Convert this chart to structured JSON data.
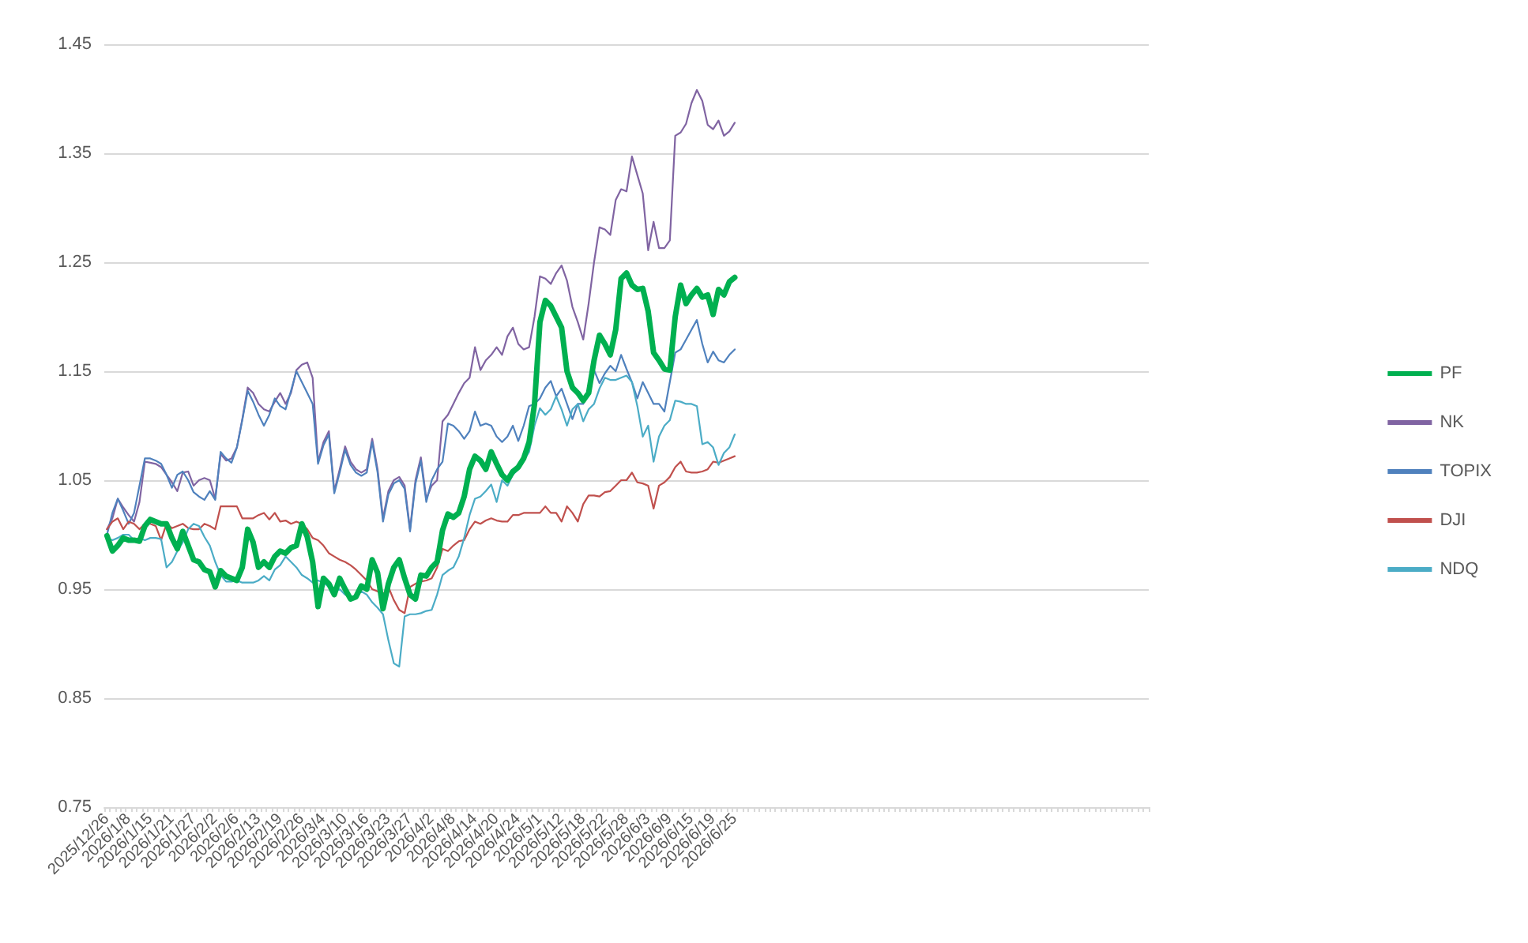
{
  "chart_data": {
    "type": "line",
    "categories": [
      "2025/12/26",
      null,
      null,
      null,
      "2026/1/8",
      null,
      null,
      null,
      "2026/1/15",
      null,
      null,
      null,
      "2026/1/21",
      null,
      null,
      null,
      "2026/1/27",
      null,
      null,
      null,
      "2026/2/2",
      null,
      null,
      null,
      "2026/2/6",
      null,
      null,
      null,
      "2026/2/13",
      null,
      null,
      null,
      "2026/2/19",
      null,
      null,
      null,
      "2026/2/26",
      null,
      null,
      null,
      "2026/3/4",
      null,
      null,
      null,
      "2026/3/10",
      null,
      null,
      null,
      "2026/3/16",
      null,
      null,
      null,
      "2026/3/23",
      null,
      null,
      null,
      "2026/3/27",
      null,
      null,
      null,
      "2026/4/2",
      null,
      null,
      null,
      "2026/4/8",
      null,
      null,
      null,
      "2026/4/14",
      null,
      null,
      null,
      "2026/4/20",
      null,
      null,
      null,
      "2026/4/24",
      null,
      null,
      null,
      "2026/5/1",
      null,
      null,
      null,
      "2026/5/12",
      null,
      null,
      null,
      "2026/5/18",
      null,
      null,
      null,
      "2026/5/22",
      null,
      null,
      null,
      "2026/5/28",
      null,
      null,
      null,
      "2026/6/3",
      null,
      null,
      null,
      "2026/6/9",
      null,
      null,
      null,
      "2026/6/15",
      null,
      null,
      null,
      "2026/6/19",
      null,
      null,
      null,
      "2026/6/25",
      null,
      null,
      null,
      null,
      null,
      null,
      null,
      null,
      null,
      null,
      null,
      null,
      null,
      null,
      null,
      null,
      null,
      null,
      null,
      null,
      null,
      null,
      null,
      null,
      null,
      null,
      null,
      null,
      null,
      null,
      null,
      null,
      null,
      null,
      null,
      null,
      null,
      null,
      null,
      null,
      null,
      null,
      null,
      null,
      null,
      null,
      null,
      null,
      null,
      null,
      null,
      null,
      null,
      null,
      null,
      null,
      null,
      null,
      null,
      null,
      null,
      null,
      null,
      null,
      null,
      null,
      null,
      null,
      null,
      null,
      null,
      null,
      null,
      null,
      null,
      null
    ],
    "series": [
      {
        "name": "PF",
        "color": "#00b050",
        "values": [
          0.999,
          0.985,
          0.99,
          0.997,
          0.995,
          0.995,
          0.994,
          1.008,
          1.014,
          1.012,
          1.01,
          1.01,
          0.997,
          0.987,
          1.003,
          0.99,
          0.977,
          0.975,
          0.968,
          0.966,
          0.952,
          0.967,
          0.962,
          0.96,
          0.958,
          0.97,
          1.005,
          0.993,
          0.97,
          0.975,
          0.97,
          0.98,
          0.985,
          0.983,
          0.988,
          0.99,
          1.01,
          0.998,
          0.975,
          0.934,
          0.96,
          0.955,
          0.945,
          0.96,
          0.95,
          0.941,
          0.943,
          0.953,
          0.95,
          0.977,
          0.965,
          0.932,
          0.955,
          0.97,
          0.977,
          0.96,
          0.945,
          0.941,
          0.963,
          0.962,
          0.97,
          0.975,
          1.004,
          1.019,
          1.016,
          1.02,
          1.035,
          1.06,
          1.072,
          1.068,
          1.06,
          1.076,
          1.065,
          1.055,
          1.05,
          1.058,
          1.062,
          1.07,
          1.085,
          1.12,
          1.195,
          1.215,
          1.21,
          1.2,
          1.19,
          1.15,
          1.135,
          1.13,
          1.123,
          1.13,
          1.16,
          1.183,
          1.175,
          1.165,
          1.188,
          1.235,
          1.24,
          1.229,
          1.225,
          1.226,
          1.205,
          1.167,
          1.16,
          1.152,
          1.151,
          1.2,
          1.229,
          1.212,
          1.22,
          1.226,
          1.218,
          1.22,
          1.202,
          1.225,
          1.22,
          1.232,
          1.236,
          null,
          null,
          null,
          null,
          null,
          null,
          null,
          null,
          null,
          null,
          null,
          null,
          null,
          null,
          null,
          null,
          null,
          null,
          null,
          null,
          null,
          null,
          null,
          null,
          null,
          null,
          null,
          null,
          null,
          null,
          null,
          null,
          null,
          null,
          null,
          null,
          null,
          null,
          null,
          null,
          null,
          null,
          null,
          null,
          null,
          null,
          null,
          null,
          null,
          null,
          null,
          null,
          null,
          null,
          null,
          null,
          null,
          null,
          null,
          null,
          null,
          null,
          null,
          null,
          null,
          null,
          null,
          null,
          null,
          null,
          null,
          null,
          null,
          null,
          null,
          null
        ]
      },
      {
        "name": "NK",
        "color": "#8064a2",
        "values": [
          1.005,
          1.015,
          1.033,
          1.025,
          1.018,
          1.012,
          1.03,
          1.067,
          1.066,
          1.065,
          1.062,
          1.055,
          1.048,
          1.04,
          1.057,
          1.058,
          1.045,
          1.05,
          1.052,
          1.05,
          1.033,
          1.074,
          1.068,
          1.07,
          1.08,
          1.106,
          1.135,
          1.13,
          1.12,
          1.115,
          1.113,
          1.122,
          1.13,
          1.12,
          1.13,
          1.151,
          1.156,
          1.158,
          1.144,
          1.067,
          1.085,
          1.095,
          1.04,
          1.06,
          1.081,
          1.067,
          1.06,
          1.057,
          1.06,
          1.088,
          1.06,
          1.015,
          1.04,
          1.05,
          1.053,
          1.045,
          1.005,
          1.05,
          1.071,
          1.033,
          1.045,
          1.05,
          1.104,
          1.11,
          1.12,
          1.13,
          1.139,
          1.144,
          1.172,
          1.151,
          1.16,
          1.165,
          1.172,
          1.165,
          1.182,
          1.19,
          1.175,
          1.17,
          1.172,
          1.2,
          1.237,
          1.235,
          1.23,
          1.24,
          1.247,
          1.233,
          1.209,
          1.195,
          1.179,
          1.212,
          1.25,
          1.282,
          1.28,
          1.275,
          1.307,
          1.317,
          1.315,
          1.347,
          1.33,
          1.313,
          1.261,
          1.287,
          1.263,
          1.263,
          1.27,
          1.366,
          1.369,
          1.377,
          1.396,
          1.408,
          1.398,
          1.376,
          1.372,
          1.38,
          1.366,
          1.37,
          1.378,
          null,
          null,
          null,
          null,
          null,
          null,
          null,
          null,
          null,
          null,
          null,
          null,
          null,
          null,
          null,
          null,
          null,
          null,
          null,
          null,
          null,
          null,
          null,
          null,
          null,
          null,
          null,
          null,
          null,
          null,
          null,
          null,
          null,
          null,
          null,
          null,
          null,
          null,
          null,
          null,
          null,
          null,
          null,
          null,
          null,
          null,
          null,
          null,
          null,
          null,
          null,
          null,
          null,
          null,
          null,
          null,
          null,
          null,
          null,
          null,
          null,
          null,
          null,
          null,
          null,
          null,
          null,
          null,
          null,
          null,
          null,
          null,
          null,
          null,
          null,
          null
        ]
      },
      {
        "name": "TOPIX",
        "color": "#4f81bd",
        "values": [
          1.0,
          1.02,
          1.033,
          1.022,
          1.01,
          1.02,
          1.045,
          1.07,
          1.07,
          1.068,
          1.065,
          1.055,
          1.043,
          1.055,
          1.058,
          1.05,
          1.039,
          1.035,
          1.032,
          1.04,
          1.032,
          1.076,
          1.07,
          1.066,
          1.08,
          1.105,
          1.132,
          1.122,
          1.11,
          1.1,
          1.11,
          1.125,
          1.118,
          1.115,
          1.132,
          1.15,
          1.14,
          1.13,
          1.12,
          1.065,
          1.082,
          1.092,
          1.038,
          1.057,
          1.078,
          1.064,
          1.057,
          1.054,
          1.057,
          1.085,
          1.057,
          1.012,
          1.037,
          1.047,
          1.05,
          1.042,
          1.003,
          1.047,
          1.068,
          1.03,
          1.05,
          1.06,
          1.067,
          1.102,
          1.1,
          1.095,
          1.088,
          1.095,
          1.113,
          1.1,
          1.102,
          1.1,
          1.09,
          1.085,
          1.09,
          1.1,
          1.086,
          1.1,
          1.118,
          1.12,
          1.125,
          1.135,
          1.141,
          1.127,
          1.134,
          1.12,
          1.106,
          1.12,
          1.12,
          1.13,
          1.151,
          1.139,
          1.148,
          1.155,
          1.15,
          1.165,
          1.152,
          1.14,
          1.125,
          1.14,
          1.13,
          1.12,
          1.12,
          1.113,
          1.14,
          1.167,
          1.17,
          1.179,
          1.188,
          1.197,
          1.175,
          1.158,
          1.168,
          1.16,
          1.158,
          1.165,
          1.17,
          null,
          null,
          null,
          null,
          null,
          null,
          null,
          null,
          null,
          null,
          null,
          null,
          null,
          null,
          null,
          null,
          null,
          null,
          null,
          null,
          null,
          null,
          null,
          null,
          null,
          null,
          null,
          null,
          null,
          null,
          null,
          null,
          null,
          null,
          null,
          null,
          null,
          null,
          null,
          null,
          null,
          null,
          null,
          null,
          null,
          null,
          null,
          null,
          null,
          null,
          null,
          null,
          null,
          null,
          null,
          null,
          null,
          null,
          null,
          null,
          null,
          null,
          null,
          null,
          null,
          null,
          null,
          null,
          null,
          null,
          null,
          null,
          null,
          null,
          null,
          null
        ]
      },
      {
        "name": "DJI",
        "color": "#c0504d",
        "values": [
          1.005,
          1.012,
          1.015,
          1.005,
          1.012,
          1.01,
          1.005,
          1.01,
          1.01,
          1.008,
          0.995,
          1.01,
          1.006,
          1.008,
          1.01,
          1.006,
          1.005,
          1.005,
          1.01,
          1.008,
          1.005,
          1.026,
          1.026,
          1.026,
          1.026,
          1.015,
          1.015,
          1.015,
          1.018,
          1.02,
          1.014,
          1.02,
          1.012,
          1.013,
          1.01,
          1.012,
          1.01,
          1.005,
          0.997,
          0.995,
          0.99,
          0.983,
          0.98,
          0.977,
          0.975,
          0.972,
          0.968,
          0.963,
          0.958,
          0.95,
          0.948,
          0.945,
          0.952,
          0.94,
          0.931,
          0.928,
          0.952,
          0.955,
          0.957,
          0.958,
          0.96,
          0.97,
          0.987,
          0.985,
          0.99,
          0.994,
          0.995,
          1.005,
          1.012,
          1.01,
          1.013,
          1.015,
          1.013,
          1.012,
          1.012,
          1.018,
          1.018,
          1.02,
          1.02,
          1.02,
          1.02,
          1.026,
          1.02,
          1.02,
          1.012,
          1.026,
          1.02,
          1.012,
          1.028,
          1.036,
          1.036,
          1.035,
          1.039,
          1.04,
          1.045,
          1.05,
          1.05,
          1.057,
          1.048,
          1.047,
          1.045,
          1.024,
          1.045,
          1.048,
          1.053,
          1.062,
          1.067,
          1.058,
          1.057,
          1.057,
          1.058,
          1.06,
          1.067,
          1.066,
          1.068,
          1.07,
          1.072,
          null,
          null,
          null,
          null,
          null,
          null,
          null,
          null,
          null,
          null,
          null,
          null,
          null,
          null,
          null,
          null,
          null,
          null,
          null,
          null,
          null,
          null,
          null,
          null,
          null,
          null,
          null,
          null,
          null,
          null,
          null,
          null,
          null,
          null,
          null,
          null,
          null,
          null,
          null,
          null,
          null,
          null,
          null,
          null,
          null,
          null,
          null,
          null,
          null,
          null,
          null,
          null,
          null,
          null,
          null,
          null,
          null,
          null,
          null,
          null,
          null,
          null,
          null,
          null,
          null,
          null,
          null,
          null,
          null,
          null,
          null,
          null,
          null,
          null,
          null,
          null
        ]
      },
      {
        "name": "NDQ",
        "color": "#4bacc6",
        "values": [
          0.997,
          0.995,
          0.997,
          1.0,
          1.0,
          0.995,
          0.997,
          0.995,
          0.997,
          0.997,
          0.996,
          0.97,
          0.975,
          0.985,
          0.993,
          1.005,
          1.01,
          1.008,
          0.998,
          0.99,
          0.975,
          0.963,
          0.957,
          0.957,
          0.958,
          0.956,
          0.956,
          0.956,
          0.958,
          0.962,
          0.958,
          0.968,
          0.972,
          0.98,
          0.975,
          0.97,
          0.963,
          0.96,
          0.956,
          0.958,
          0.956,
          0.952,
          0.948,
          0.95,
          0.945,
          0.942,
          0.945,
          0.948,
          0.945,
          0.938,
          0.933,
          0.927,
          0.903,
          0.882,
          0.879,
          0.925,
          0.927,
          0.927,
          0.928,
          0.93,
          0.931,
          0.945,
          0.963,
          0.967,
          0.97,
          0.98,
          0.997,
          1.018,
          1.033,
          1.035,
          1.04,
          1.046,
          1.03,
          1.05,
          1.045,
          1.055,
          1.06,
          1.068,
          1.076,
          1.1,
          1.116,
          1.11,
          1.115,
          1.127,
          1.115,
          1.1,
          1.115,
          1.12,
          1.104,
          1.115,
          1.12,
          1.134,
          1.144,
          1.142,
          1.142,
          1.144,
          1.146,
          1.14,
          1.118,
          1.09,
          1.1,
          1.067,
          1.09,
          1.1,
          1.105,
          1.123,
          1.122,
          1.12,
          1.12,
          1.118,
          1.083,
          1.085,
          1.08,
          1.064,
          1.075,
          1.08,
          1.092,
          null,
          null,
          null,
          null,
          null,
          null,
          null,
          null,
          null,
          null,
          null,
          null,
          null,
          null,
          null,
          null,
          null,
          null,
          null,
          null,
          null,
          null,
          null,
          null,
          null,
          null,
          null,
          null,
          null,
          null,
          null,
          null,
          null,
          null,
          null,
          null,
          null,
          null,
          null,
          null,
          null,
          null,
          null,
          null,
          null,
          null,
          null,
          null,
          null,
          null,
          null,
          null,
          null,
          null,
          null,
          null,
          null,
          null,
          null,
          null,
          null,
          null,
          null,
          null,
          null,
          null,
          null,
          null,
          null,
          null,
          null,
          null,
          null,
          null,
          null,
          null
        ]
      }
    ],
    "ylim": [
      0.75,
      1.45
    ],
    "yticks": [
      0.75,
      0.85,
      0.95,
      1.05,
      1.15,
      1.25,
      1.35,
      1.45
    ],
    "grid": "y",
    "legend": "right",
    "marker": "none",
    "line_style": "solid"
  }
}
